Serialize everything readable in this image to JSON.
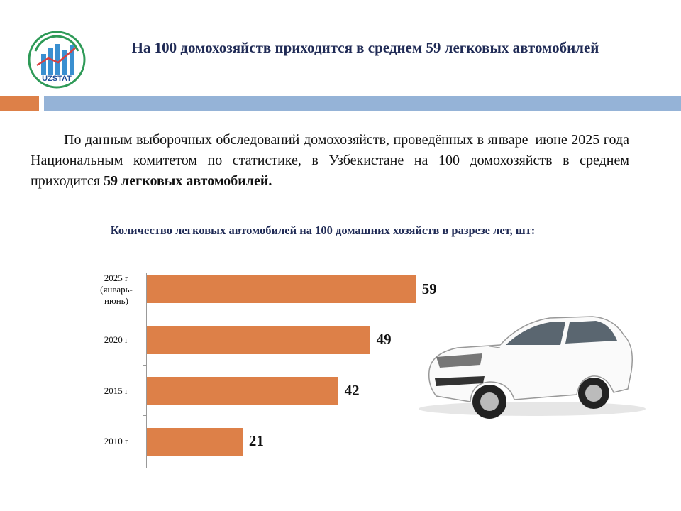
{
  "header": {
    "title": "На 100 домохозяйств приходится в среднем 59 легковых автомобилей",
    "logo_text": "UZSTAT"
  },
  "paragraph": {
    "text": "По данным выборочных обследований домохозяйств, проведённых в январе–июне 2025 года Национальным комитетом по статистике, в Узбекистане на 100 домохозяйств в среднем приходится ",
    "bold": "59 легковых автомобилей."
  },
  "chart_data": {
    "type": "hbar",
    "title": "Количество легковых автомобилей на 100 домашних хозяйств в разрезе лет, шт:",
    "categories": [
      "2025 г (январь-июнь)",
      "2020 г",
      "2015 г",
      "2010 г"
    ],
    "values": [
      59,
      49,
      42,
      21
    ],
    "color": "#dd8048"
  }
}
